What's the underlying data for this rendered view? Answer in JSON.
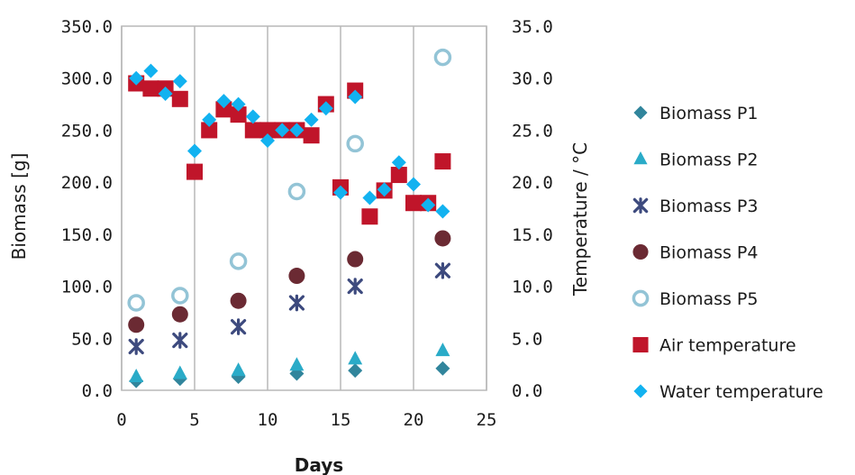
{
  "chart_data": {
    "type": "scatter",
    "xlabel": "Days",
    "ylabel": "Biomass [g]",
    "y2label": "Temperature / °C",
    "xlim": [
      0,
      25
    ],
    "ylim": [
      0,
      350
    ],
    "y2lim": [
      0,
      35
    ],
    "x_ticks": [
      "0",
      "5",
      "10",
      "15",
      "20",
      "25"
    ],
    "y_ticks": [
      "0.0",
      "50.0",
      "100.0",
      "150.0",
      "200.0",
      "250.0",
      "300.0",
      "350.0"
    ],
    "y2_ticks": [
      "0.0",
      "5.0",
      "10.0",
      "15.0",
      "20.0",
      "25.0",
      "30.0",
      "35.0"
    ],
    "grid": "vertical",
    "legend_position": "right",
    "series": [
      {
        "name": "Biomass P1",
        "axis": "left",
        "marker": "diamond",
        "color": "#31859c",
        "points": [
          [
            1,
            9
          ],
          [
            4,
            11
          ],
          [
            8,
            13
          ],
          [
            12,
            16
          ],
          [
            16,
            19
          ],
          [
            22,
            21
          ]
        ]
      },
      {
        "name": "Biomass P2",
        "axis": "left",
        "marker": "triangle",
        "color": "#2aabc8",
        "points": [
          [
            1,
            13
          ],
          [
            4,
            16
          ],
          [
            8,
            19
          ],
          [
            12,
            24
          ],
          [
            16,
            30
          ],
          [
            22,
            38
          ]
        ]
      },
      {
        "name": "Biomass P3",
        "axis": "left",
        "marker": "star",
        "color": "#3d4a7e",
        "points": [
          [
            1,
            42
          ],
          [
            4,
            48
          ],
          [
            8,
            61
          ],
          [
            12,
            84
          ],
          [
            16,
            100
          ],
          [
            22,
            115
          ]
        ]
      },
      {
        "name": "Biomass P4",
        "axis": "left",
        "marker": "circle",
        "color": "#6b2a33",
        "points": [
          [
            1,
            63
          ],
          [
            4,
            73
          ],
          [
            8,
            86
          ],
          [
            12,
            110
          ],
          [
            16,
            126
          ],
          [
            22,
            146
          ]
        ]
      },
      {
        "name": "Biomass P5",
        "axis": "left",
        "marker": "ring",
        "color": "#93c4d6",
        "points": [
          [
            1,
            84
          ],
          [
            4,
            91
          ],
          [
            8,
            124
          ],
          [
            12,
            191
          ],
          [
            16,
            237
          ],
          [
            22,
            320
          ]
        ]
      },
      {
        "name": "Air temperature",
        "axis": "right",
        "marker": "square",
        "color": "#c0152a",
        "points": [
          [
            1,
            29.5
          ],
          [
            2,
            29
          ],
          [
            3,
            29
          ],
          [
            4,
            28
          ],
          [
            5,
            21
          ],
          [
            6,
            25
          ],
          [
            7,
            27
          ],
          [
            8,
            26.5
          ],
          [
            9,
            25
          ],
          [
            10,
            25
          ],
          [
            11,
            25
          ],
          [
            12,
            25
          ],
          [
            13,
            24.5
          ],
          [
            14,
            27.5
          ],
          [
            15,
            19.5
          ],
          [
            16,
            28.8
          ],
          [
            17,
            16.7
          ],
          [
            18,
            19.2
          ],
          [
            19,
            20.7
          ],
          [
            20,
            18
          ],
          [
            21,
            18
          ],
          [
            22,
            22
          ]
        ]
      },
      {
        "name": "Water temperature",
        "axis": "right",
        "marker": "diamond",
        "color": "#12b2f0",
        "points": [
          [
            1,
            30
          ],
          [
            2,
            30.7
          ],
          [
            3,
            28.5
          ],
          [
            4,
            29.7
          ],
          [
            5,
            23
          ],
          [
            6,
            26
          ],
          [
            7,
            27.8
          ],
          [
            8,
            27.5
          ],
          [
            9,
            26.3
          ],
          [
            10,
            24
          ],
          [
            11,
            25
          ],
          [
            12,
            25
          ],
          [
            13,
            26
          ],
          [
            14,
            27.1
          ],
          [
            15,
            19
          ],
          [
            16,
            28.2
          ],
          [
            17,
            18.5
          ],
          [
            18,
            19.3
          ],
          [
            19,
            21.9
          ],
          [
            20,
            19.8
          ],
          [
            21,
            17.8
          ],
          [
            22,
            17.2
          ]
        ]
      }
    ]
  }
}
